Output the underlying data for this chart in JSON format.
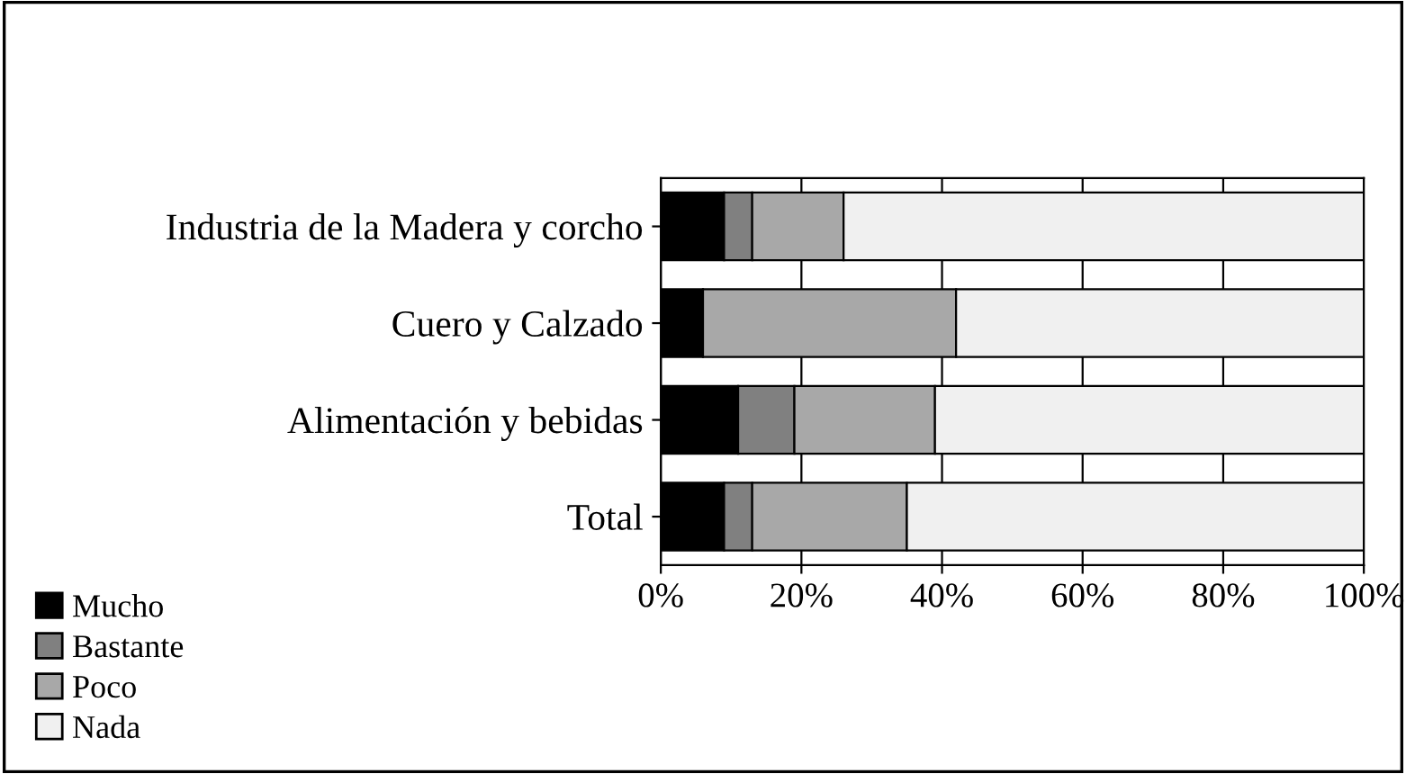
{
  "chart_data": {
    "type": "bar",
    "orientation": "horizontal",
    "stacked": true,
    "categories": [
      "Industria de la Madera y corcho",
      "Cuero y Calzado",
      "Alimentación y bebidas",
      "Total"
    ],
    "series": [
      {
        "name": "Mucho",
        "color": "#000000",
        "values": [
          9,
          6,
          11,
          9
        ]
      },
      {
        "name": "Bastante",
        "color": "#808080",
        "values": [
          4,
          0,
          8,
          4
        ]
      },
      {
        "name": "Poco",
        "color": "#a8a8a8",
        "values": [
          13,
          36,
          20,
          22
        ]
      },
      {
        "name": "Nada",
        "color": "#f0f0f0",
        "values": [
          74,
          58,
          61,
          65
        ]
      }
    ],
    "xlim": [
      0,
      100
    ],
    "xticks": [
      {
        "value": 0,
        "label": "0%"
      },
      {
        "value": 20,
        "label": "20%"
      },
      {
        "value": 40,
        "label": "40%"
      },
      {
        "value": 60,
        "label": "60%"
      },
      {
        "value": 80,
        "label": "80%"
      },
      {
        "value": 100,
        "label": "100%"
      }
    ],
    "grid": "x",
    "legend": "bottom left"
  }
}
